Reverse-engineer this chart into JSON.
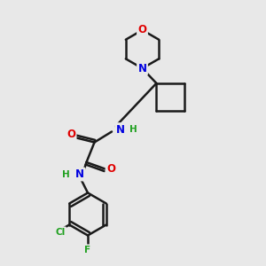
{
  "bg_color": "#e8e8e8",
  "bond_color": "#1a1a1a",
  "bond_width": 1.8,
  "atom_colors": {
    "O": "#e00000",
    "N": "#0000e0",
    "H": "#20a020",
    "Cl": "#20a020",
    "F": "#20a020",
    "C": "#1a1a1a"
  },
  "font_size_atom": 8.5,
  "font_size_H": 7.5,
  "font_size_Cl": 7.5
}
